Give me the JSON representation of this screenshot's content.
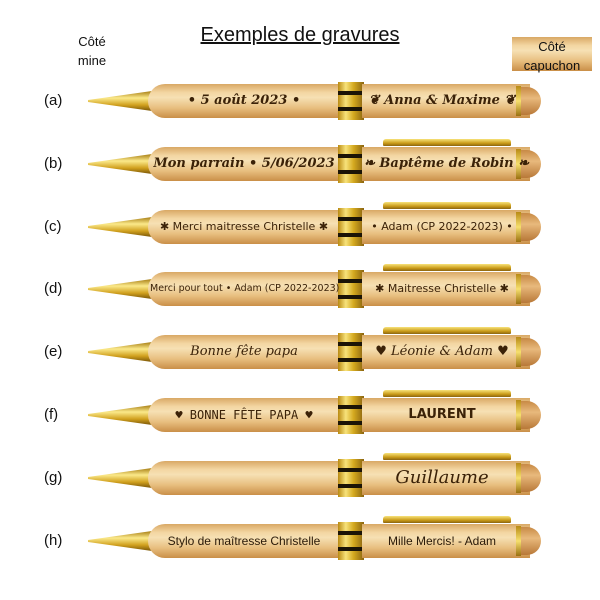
{
  "title": "Exemples de gravures",
  "side_left": [
    "Côté",
    "mine"
  ],
  "side_right": [
    "Côté",
    "capuchon"
  ],
  "pens": [
    {
      "label": "(a)",
      "left": "• 5 août 2023 •",
      "right": "❦ Anna & Maxime ❦",
      "style": "s0",
      "style_r": "s0",
      "clip": false
    },
    {
      "label": "(b)",
      "left": "Mon parrain • 5/06/2023",
      "right": "❧ Baptême de Robin ❧",
      "style": "s0",
      "style_r": "s0",
      "clip": true
    },
    {
      "label": "(c)",
      "left": "✱ Merci maitresse Christelle ✱",
      "right": "• Adam (CP 2022-2023) •",
      "style": "s1",
      "style_r": "s1",
      "clip": true
    },
    {
      "label": "(d)",
      "left": "Merci pour tout • Adam (CP 2022-2023)",
      "right": "✱ Maitresse Christelle ✱",
      "style": "s2",
      "style_r": "s1",
      "clip": true
    },
    {
      "label": "(e)",
      "left": "Bonne fête papa",
      "right": "♥ Léonie & Adam ♥",
      "style": "s3",
      "style_r": "s3",
      "clip": true
    },
    {
      "label": "(f)",
      "left": "♥ BONNE FÊTE PAPA ♥",
      "right": "LAURENT",
      "style": "s4",
      "style_r": "s5",
      "clip": true
    },
    {
      "label": "(g)",
      "left": "",
      "right": "Guillaume",
      "style": "s3",
      "style_r": "s6",
      "clip": true
    },
    {
      "label": "(h)",
      "left": "Stylo de maîtresse Christelle",
      "right": "Mille Mercis! - Adam",
      "style": "s7",
      "style_r": "s7",
      "clip": true
    }
  ],
  "colors": {
    "wood": "#f3d6a2",
    "gold": "#d4a91f",
    "engraving": "#3b2208"
  }
}
